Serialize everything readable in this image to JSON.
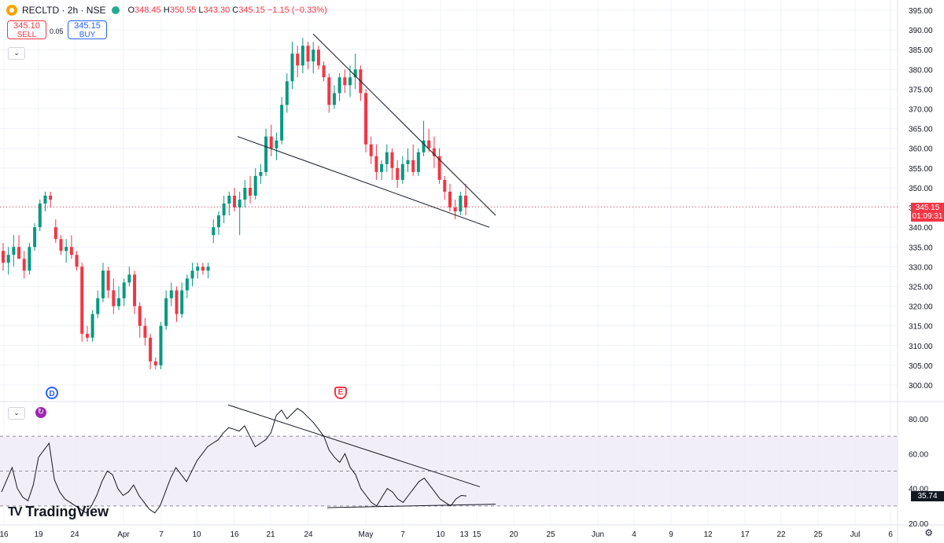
{
  "header": {
    "symbol_line": "RECLTD · 2h · NSE",
    "ohlc": {
      "o_key": "O",
      "o": "348.45",
      "h_key": "H",
      "h": "350.55",
      "l_key": "L",
      "l": "343.30",
      "c_key": "C",
      "c": "345.15",
      "change": "−1.15 (−0.33%)"
    }
  },
  "trade": {
    "sell_price": "345.10",
    "sell_label": "SELL",
    "spread": "0.05",
    "buy_price": "345.15",
    "buy_label": "BUY"
  },
  "collapse_glyph": "⌄",
  "price_axis": {
    "labels": [
      "395.00",
      "390.00",
      "385.00",
      "380.00",
      "375.00",
      "370.00",
      "365.00",
      "360.00",
      "355.00",
      "350.00",
      "345.00",
      "340.00",
      "335.00",
      "330.00",
      "325.00",
      "320.00",
      "315.00",
      "310.00",
      "305.00",
      "300.00"
    ],
    "current_price": "345.15",
    "countdown": "01:09:31"
  },
  "rsi_axis": {
    "labels": [
      "80.00",
      "60.00",
      "40.00",
      "20.00"
    ],
    "extra_label": "40.00",
    "current": "35.74"
  },
  "time_axis": {
    "labels": [
      "16",
      "19",
      "24",
      "Apr",
      "7",
      "10",
      "16",
      "21",
      "24",
      "May",
      "7",
      "10",
      "13",
      "15",
      "20",
      "25",
      "Jun",
      "4",
      "9",
      "12",
      "17",
      "22",
      "25",
      "Jul",
      "6"
    ]
  },
  "events": {
    "dividend": "D",
    "earnings": "E"
  },
  "logo": {
    "mark": "TV",
    "text": "TradingView"
  },
  "settings_icon": "gear-icon",
  "colors": {
    "up": "#089981",
    "down": "#f23645",
    "rsi_line": "#131722",
    "rsi_band": "#7e57c2",
    "trend": "#131722"
  },
  "chart_data": {
    "type": "candlestick",
    "interval": "2h",
    "price_scale": [
      300,
      395
    ],
    "candles_ohlc": [
      [
        334,
        336,
        329,
        331
      ],
      [
        331,
        335,
        328,
        333
      ],
      [
        333,
        338,
        330,
        335
      ],
      [
        335,
        338,
        332,
        332
      ],
      [
        332,
        334,
        327,
        329
      ],
      [
        329,
        336,
        328,
        335
      ],
      [
        335,
        341,
        334,
        340
      ],
      [
        340,
        347,
        339,
        346
      ],
      [
        346,
        349,
        344,
        348
      ],
      [
        348,
        349,
        345,
        347
      ],
      [
        340,
        342,
        336,
        337
      ],
      [
        337,
        338,
        333,
        334
      ],
      [
        334,
        337,
        331,
        335
      ],
      [
        335,
        338,
        332,
        333
      ],
      [
        333,
        334,
        329,
        330
      ],
      [
        330,
        331,
        311,
        313
      ],
      [
        313,
        315,
        311,
        312
      ],
      [
        312,
        319,
        311,
        318
      ],
      [
        318,
        324,
        317,
        322
      ],
      [
        322,
        331,
        321,
        329
      ],
      [
        329,
        330,
        322,
        324
      ],
      [
        324,
        327,
        318,
        320
      ],
      [
        320,
        325,
        319,
        322
      ],
      [
        322,
        327,
        320,
        326
      ],
      [
        326,
        330,
        325,
        328
      ],
      [
        328,
        329,
        318,
        320
      ],
      [
        320,
        321,
        312,
        315
      ],
      [
        315,
        317,
        310,
        312
      ],
      [
        312,
        313,
        304,
        306
      ],
      [
        306,
        307,
        304,
        305
      ],
      [
        305,
        316,
        304,
        315
      ],
      [
        315,
        324,
        314,
        322
      ],
      [
        322,
        326,
        320,
        324
      ],
      [
        324,
        325,
        316,
        318
      ],
      [
        318,
        326,
        317,
        324
      ],
      [
        324,
        328,
        322,
        327
      ],
      [
        327,
        331,
        325,
        329
      ],
      [
        329,
        331,
        327,
        330
      ],
      [
        330,
        331,
        328,
        329
      ],
      [
        329,
        331,
        327,
        330
      ],
      [
        338,
        342,
        336,
        340
      ],
      [
        340,
        344,
        338,
        343
      ],
      [
        343,
        348,
        341,
        346
      ],
      [
        346,
        349,
        343,
        348
      ],
      [
        348,
        350,
        344,
        345
      ],
      [
        345,
        349,
        338,
        347
      ],
      [
        347,
        352,
        345,
        350
      ],
      [
        350,
        353,
        346,
        348
      ],
      [
        348,
        355,
        347,
        353
      ],
      [
        353,
        356,
        351,
        354
      ],
      [
        354,
        365,
        353,
        363
      ],
      [
        363,
        366,
        358,
        360
      ],
      [
        360,
        364,
        357,
        362
      ],
      [
        362,
        373,
        361,
        371
      ],
      [
        371,
        379,
        369,
        377
      ],
      [
        377,
        387,
        375,
        384
      ],
      [
        384,
        386,
        378,
        381
      ],
      [
        381,
        388,
        379,
        386
      ],
      [
        386,
        387,
        380,
        382
      ],
      [
        382,
        387,
        379,
        385
      ],
      [
        385,
        386,
        380,
        381
      ],
      [
        381,
        382,
        377,
        378
      ],
      [
        378,
        379,
        369,
        371
      ],
      [
        371,
        376,
        370,
        374
      ],
      [
        374,
        379,
        372,
        378
      ],
      [
        378,
        380,
        374,
        376
      ],
      [
        376,
        381,
        373,
        378
      ],
      [
        378,
        384,
        375,
        380
      ],
      [
        380,
        381,
        372,
        374
      ],
      [
        374,
        375,
        359,
        361
      ],
      [
        361,
        363,
        356,
        358
      ],
      [
        358,
        361,
        352,
        354
      ],
      [
        354,
        357,
        352,
        356
      ],
      [
        356,
        361,
        354,
        359
      ],
      [
        359,
        360,
        352,
        355
      ],
      [
        355,
        357,
        350,
        352
      ],
      [
        352,
        358,
        351,
        356
      ],
      [
        356,
        360,
        354,
        357
      ],
      [
        357,
        361,
        353,
        354
      ],
      [
        354,
        360,
        353,
        359
      ],
      [
        359,
        367,
        358,
        362
      ],
      [
        362,
        365,
        359,
        360
      ],
      [
        360,
        363,
        355,
        358
      ],
      [
        358,
        360,
        351,
        352
      ],
      [
        352,
        353,
        347,
        349
      ],
      [
        349,
        351,
        344,
        345
      ],
      [
        345,
        347,
        342,
        344
      ],
      [
        344,
        349,
        343,
        348
      ],
      [
        348,
        351,
        343,
        345
      ]
    ],
    "trendlines": [
      {
        "name": "upper",
        "from": {
          "date": "Apr 24",
          "price": 389
        },
        "to": {
          "date": "May 16",
          "price": 343
        }
      },
      {
        "name": "lower",
        "from": {
          "date": "Apr 16",
          "price": 363
        },
        "to": {
          "date": "May 16",
          "price": 340
        }
      }
    ],
    "rsi": {
      "scale": [
        20,
        90
      ],
      "bands": [
        30,
        50,
        70
      ],
      "values": [
        38,
        45,
        52,
        40,
        35,
        33,
        42,
        58,
        62,
        66,
        45,
        38,
        34,
        32,
        30,
        28,
        26,
        30,
        36,
        44,
        50,
        48,
        40,
        36,
        38,
        42,
        36,
        32,
        28,
        26,
        30,
        38,
        46,
        52,
        48,
        44,
        50,
        56,
        60,
        64,
        66,
        68,
        72,
        75,
        74,
        73,
        76,
        70,
        64,
        66,
        68,
        72,
        82,
        85,
        80,
        83,
        86,
        84,
        81,
        78,
        74,
        70,
        62,
        58,
        55,
        60,
        52,
        48,
        40,
        36,
        32,
        30,
        35,
        40,
        38,
        34,
        32,
        36,
        40,
        44,
        46,
        42,
        38,
        34,
        32,
        30,
        34,
        36,
        35.74
      ],
      "trendlines": [
        {
          "name": "upper",
          "from": {
            "date": "Apr 16",
            "rsi": 88
          },
          "to": {
            "date": "May 16",
            "rsi": 41
          }
        },
        {
          "name": "lower",
          "from": {
            "date": "Apr 24",
            "rsi": 29
          },
          "to": {
            "date": "May 16",
            "rsi": 31
          }
        }
      ]
    }
  }
}
